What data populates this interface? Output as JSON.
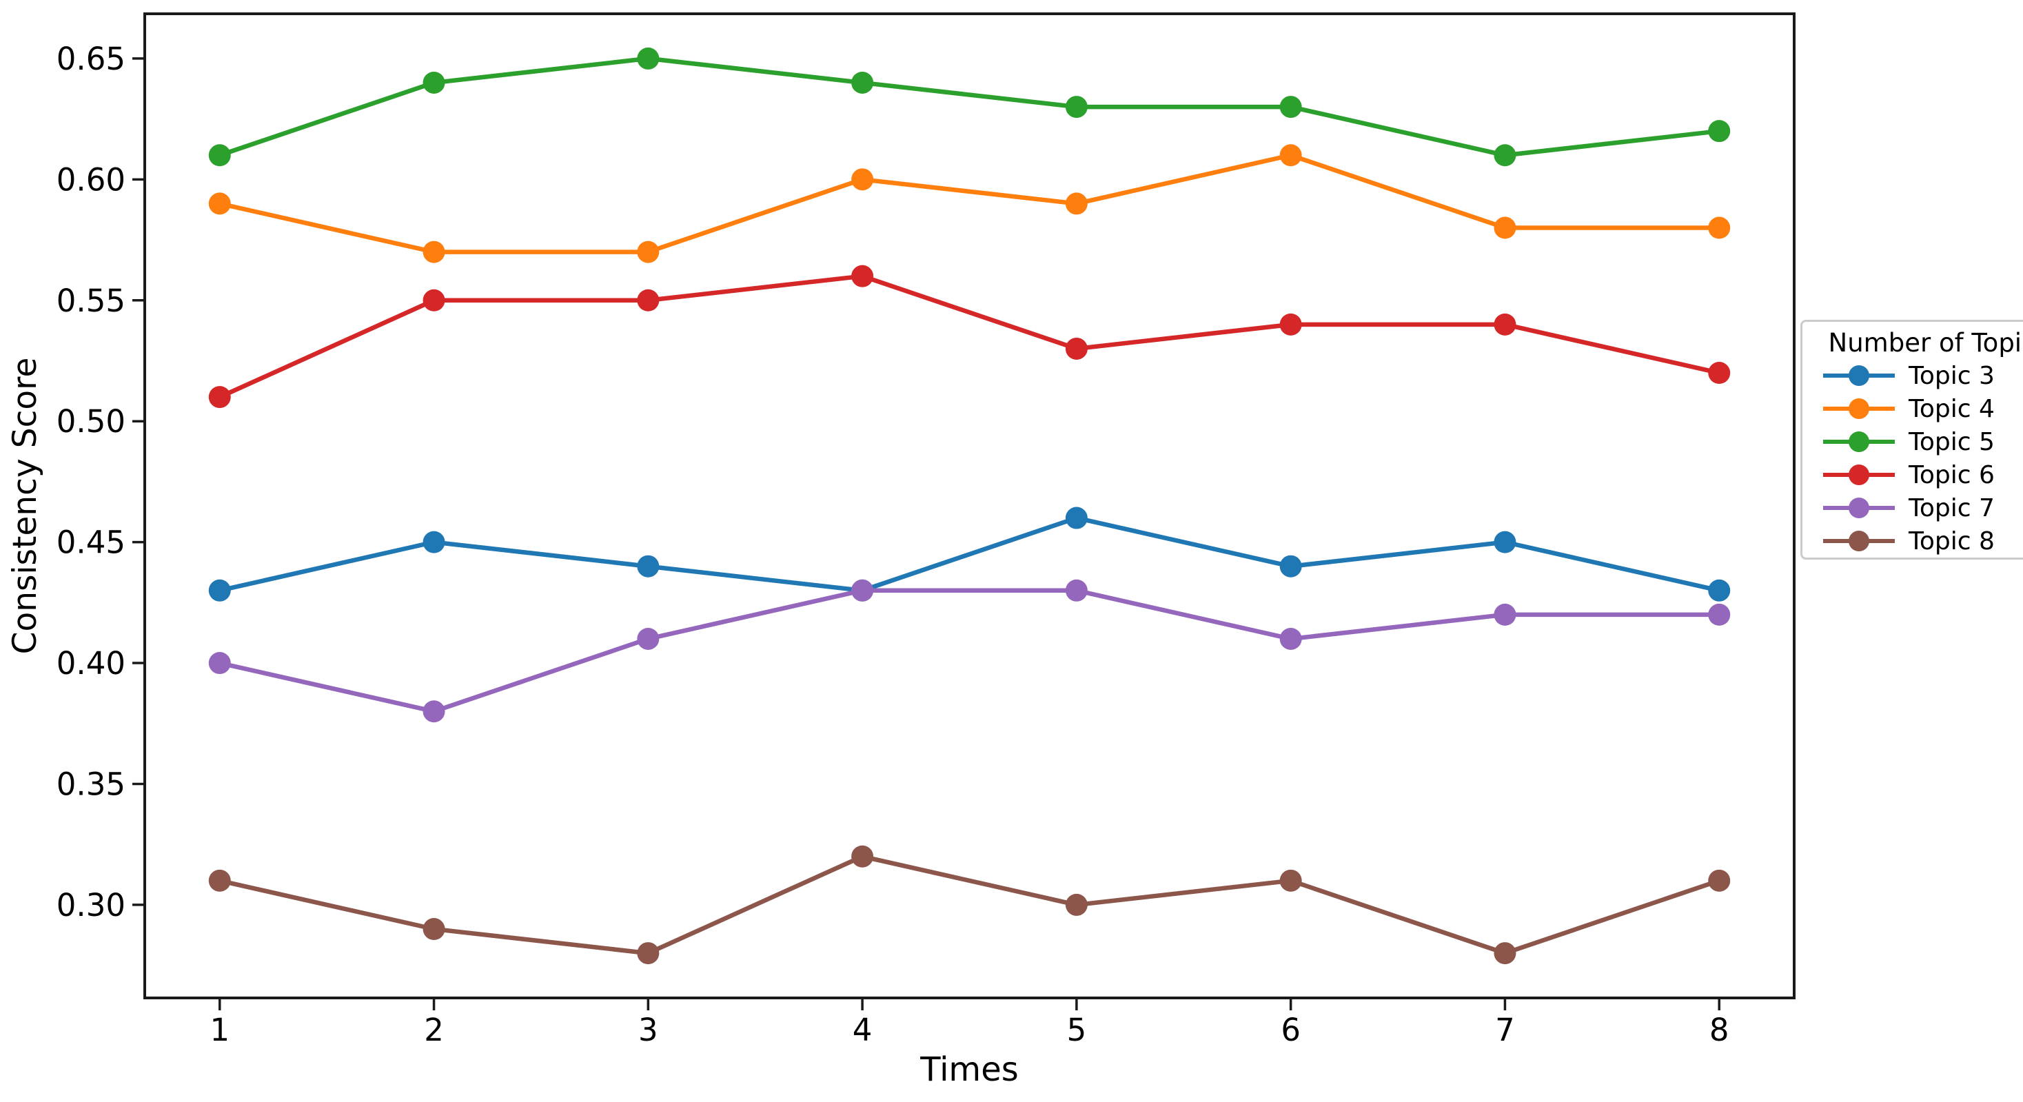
{
  "figure": {
    "background": "#ffffff",
    "spine_color": "#1a1a1a",
    "xlabel": "Times",
    "ylabel": "Consistency Score",
    "x_ticks": [
      "1",
      "2",
      "3",
      "4",
      "5",
      "6",
      "7",
      "8"
    ],
    "y_ticks": [
      "0.30",
      "0.35",
      "0.40",
      "0.45",
      "0.50",
      "0.55",
      "0.60",
      "0.65"
    ]
  },
  "legend": {
    "title": "Number of Topic",
    "items": [
      {
        "label": "Topic 3",
        "color": "#1f77b4"
      },
      {
        "label": "Topic 4",
        "color": "#ff7f0e"
      },
      {
        "label": "Topic 5",
        "color": "#2ca02c"
      },
      {
        "label": "Topic 6",
        "color": "#d62728"
      },
      {
        "label": "Topic 7",
        "color": "#9467bd"
      },
      {
        "label": "Topic 8",
        "color": "#8c564b"
      }
    ]
  },
  "chart_data": {
    "type": "line",
    "title": "",
    "xlabel": "Times",
    "ylabel": "Consistency Score",
    "x": [
      1,
      2,
      3,
      4,
      5,
      6,
      7,
      8
    ],
    "x_tick_values": [
      1,
      2,
      3,
      4,
      5,
      6,
      7,
      8
    ],
    "y_tick_values": [
      0.3,
      0.35,
      0.4,
      0.45,
      0.5,
      0.55,
      0.6,
      0.65
    ],
    "xlim": [
      0.65,
      8.35
    ],
    "ylim": [
      0.2615,
      0.6685
    ],
    "grid": false,
    "marker": "circle",
    "legend_position": "outside-right",
    "legend_title": "Number of Topic",
    "series": [
      {
        "name": "Topic 3",
        "color": "#1f77b4",
        "values": [
          0.43,
          0.45,
          0.44,
          0.43,
          0.46,
          0.44,
          0.45,
          0.43
        ]
      },
      {
        "name": "Topic 4",
        "color": "#ff7f0e",
        "values": [
          0.59,
          0.57,
          0.57,
          0.6,
          0.59,
          0.61,
          0.58,
          0.58
        ]
      },
      {
        "name": "Topic 5",
        "color": "#2ca02c",
        "values": [
          0.61,
          0.64,
          0.65,
          0.64,
          0.63,
          0.63,
          0.61,
          0.62
        ]
      },
      {
        "name": "Topic 6",
        "color": "#d62728",
        "values": [
          0.51,
          0.55,
          0.55,
          0.56,
          0.53,
          0.54,
          0.54,
          0.52
        ]
      },
      {
        "name": "Topic 7",
        "color": "#9467bd",
        "values": [
          0.4,
          0.38,
          0.41,
          0.43,
          0.43,
          0.41,
          0.42,
          0.42
        ]
      },
      {
        "name": "Topic 8",
        "color": "#8c564b",
        "values": [
          0.31,
          0.29,
          0.28,
          0.32,
          0.3,
          0.31,
          0.28,
          0.31
        ]
      }
    ]
  }
}
